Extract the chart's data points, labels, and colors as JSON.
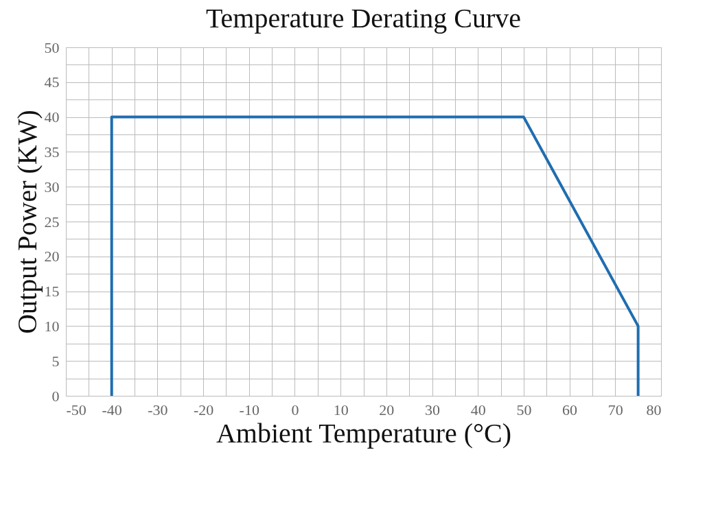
{
  "chart_data": {
    "type": "line",
    "title": "Temperature Derating Curve",
    "xlabel": "Ambient Temperature (°C)",
    "ylabel": "Output Power (KW)",
    "x": [
      -40,
      -40,
      50,
      75,
      75
    ],
    "series": [
      {
        "color": "#1f6db0",
        "values": [
          0,
          40,
          40,
          10,
          0
        ]
      }
    ],
    "xlim": [
      -50,
      80
    ],
    "xticks": [
      -50,
      {
        "value": -45,
        "label": null
      },
      -40,
      {
        "value": -35,
        "label": null
      },
      -30,
      {
        "value": -25,
        "label": null
      },
      -20,
      {
        "value": -15,
        "label": null
      },
      -10,
      {
        "value": -5,
        "label": null
      },
      0,
      {
        "value": 5,
        "label": null
      },
      10,
      {
        "value": 15,
        "label": null
      },
      20,
      {
        "value": 25,
        "label": null
      },
      30,
      {
        "value": 35,
        "label": null
      },
      40,
      {
        "value": 45,
        "label": null
      },
      50,
      {
        "value": 55,
        "label": null
      },
      60,
      {
        "value": 65,
        "label": null
      },
      70,
      {
        "value": 75,
        "label": null
      },
      80
    ],
    "ylim": [
      0,
      50
    ],
    "yticks": [
      0,
      {
        "value": 2.5,
        "label": null
      },
      5,
      {
        "value": 7.5,
        "label": null
      },
      10,
      {
        "value": 12.5,
        "label": null
      },
      15,
      {
        "value": 17.5,
        "label": null
      },
      20,
      {
        "value": 22.5,
        "label": null
      },
      25,
      {
        "value": 27.5,
        "label": null
      },
      30,
      {
        "value": 32.5,
        "label": null
      },
      35,
      {
        "value": 37.5,
        "label": null
      },
      40,
      {
        "value": 42.5,
        "label": null
      },
      45,
      {
        "value": 47.5,
        "label": null
      },
      50
    ],
    "grid": true,
    "marker": "none",
    "line_style": "solid"
  }
}
